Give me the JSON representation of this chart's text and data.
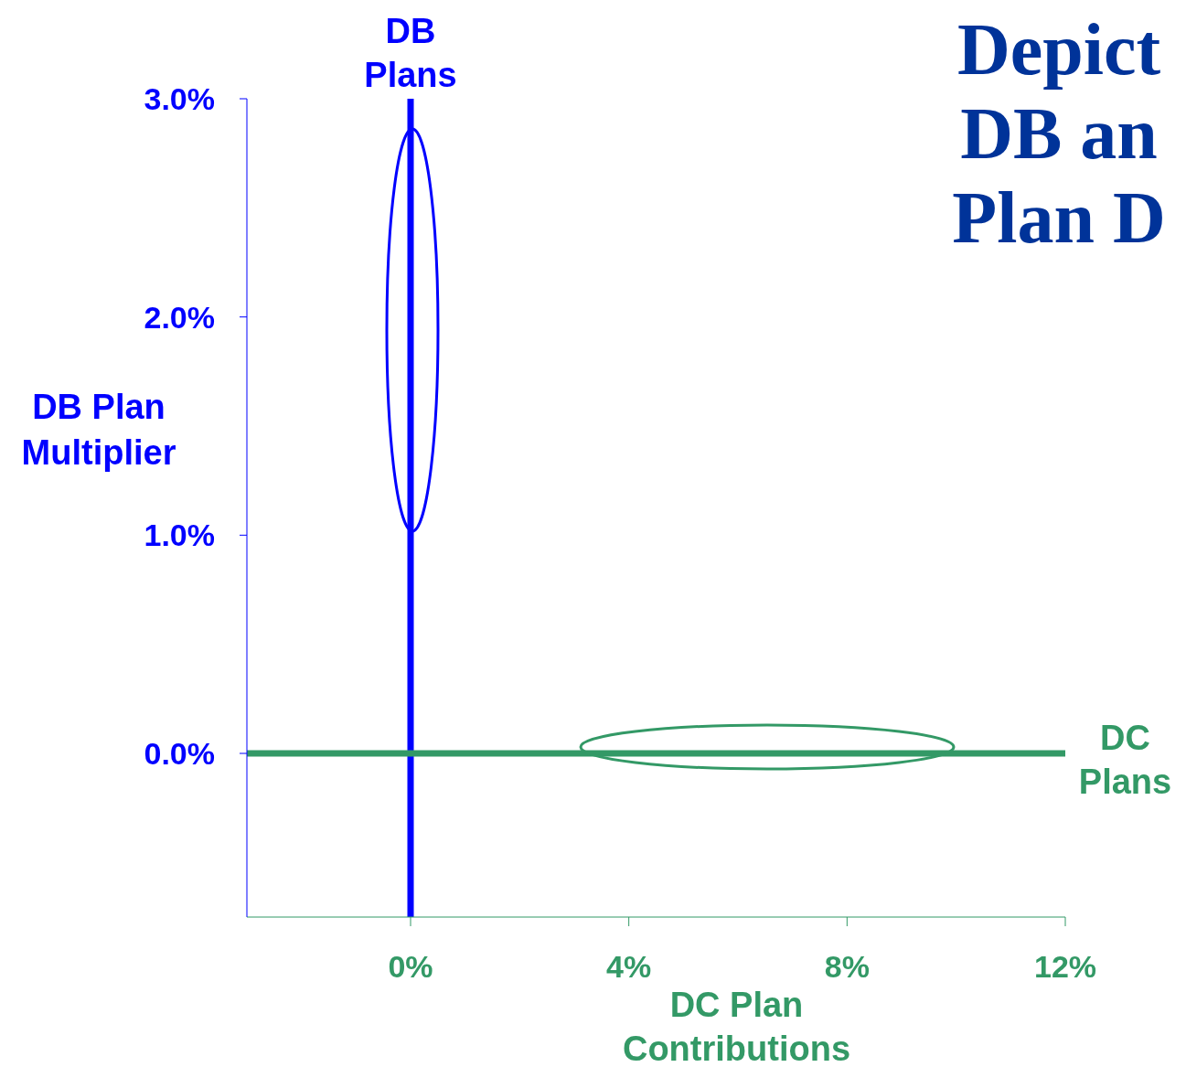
{
  "chart_data": {
    "type": "line",
    "title": "Depict DB an Plan D",
    "xlabel": "DC Plan Contributions",
    "ylabel": "DB Plan Multiplier",
    "xlim": [
      -3,
      12
    ],
    "xticks": [
      {
        "value": 0,
        "label": "0%"
      },
      {
        "value": 4,
        "label": "4%"
      },
      {
        "value": 8,
        "label": "8%"
      },
      {
        "value": 12,
        "label": "12%"
      }
    ],
    "ylim": [
      -0.75,
      3
    ],
    "yticks": [
      {
        "value": 0,
        "label": "0.0%"
      },
      {
        "value": 1,
        "label": "1.0%"
      },
      {
        "value": 2,
        "label": "2.0%"
      },
      {
        "value": 3,
        "label": "3.0%"
      }
    ],
    "series": [
      {
        "name": "DB Plans",
        "color": "#0000ff",
        "x": [
          0,
          0
        ],
        "values": [
          -0.75,
          3
        ]
      },
      {
        "name": "DC Plans",
        "color": "#339966",
        "x": [
          -3,
          12
        ],
        "values": [
          0,
          0
        ]
      }
    ],
    "grid": false,
    "legend": false,
    "marker": "none",
    "line_style": "solid"
  }
}
